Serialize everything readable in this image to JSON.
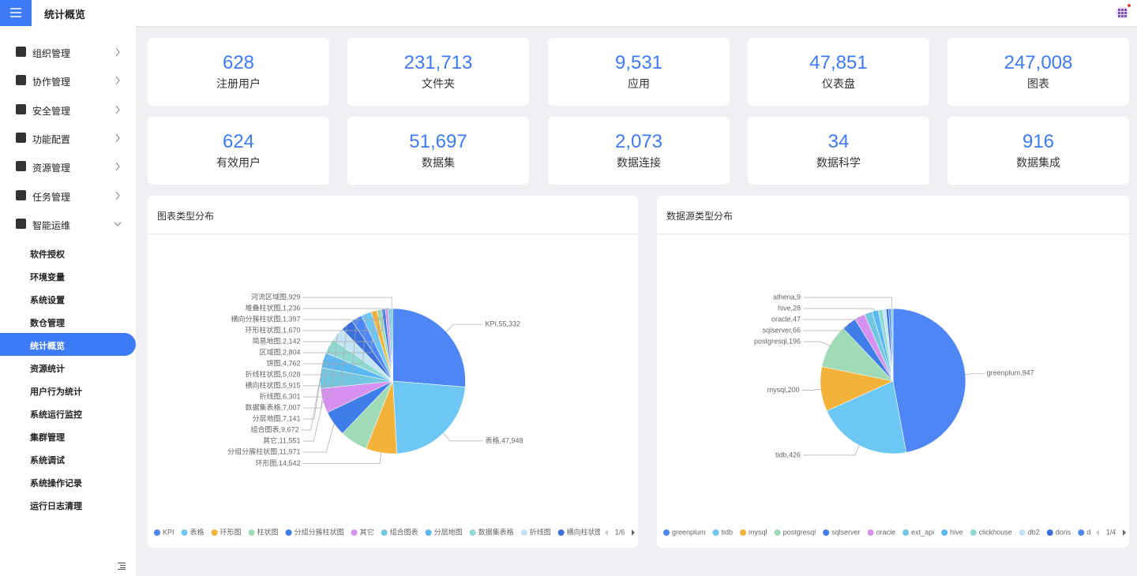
{
  "header": {
    "title": "统计概览"
  },
  "sidebar": {
    "menu": [
      "组织管理",
      "协作管理",
      "安全管理",
      "功能配置",
      "资源管理",
      "任务管理",
      "智能运维"
    ],
    "submenu": [
      "软件授权",
      "环境变量",
      "系统设置",
      "数仓管理",
      "统计概览",
      "资源统计",
      "用户行为统计",
      "系统运行监控",
      "集群管理",
      "系统调试",
      "系统操作记录",
      "运行日志清理"
    ],
    "active_index": 4
  },
  "stats": [
    {
      "value": "628",
      "label": "注册用户"
    },
    {
      "value": "231,713",
      "label": "文件夹"
    },
    {
      "value": "9,531",
      "label": "应用"
    },
    {
      "value": "47,851",
      "label": "仪表盘"
    },
    {
      "value": "247,008",
      "label": "图表"
    },
    {
      "value": "624",
      "label": "有效用户"
    },
    {
      "value": "51,697",
      "label": "数据集"
    },
    {
      "value": "2,073",
      "label": "数据连接"
    },
    {
      "value": "34",
      "label": "数据科学"
    },
    {
      "value": "916",
      "label": "数据集成"
    }
  ],
  "chart_data": [
    {
      "type": "pie",
      "title": "图表类型分布",
      "categories": [
        "KPI",
        "表格",
        "环形图",
        "柱状图",
        "分组分簇柱状图",
        "其它",
        "组合图表",
        "分层地图",
        "数据集表格",
        "折线图",
        "横向柱状图",
        "折线柱状图",
        "饼图",
        "区域图",
        "简易地图",
        "环形柱状图",
        "横向分簇柱状图",
        "堆叠柱状图",
        "河流区域图"
      ],
      "values": [
        55332,
        47948,
        14542,
        13000,
        11971,
        11551,
        9672,
        7141,
        7007,
        6301,
        5915,
        5028,
        4762,
        2804,
        2142,
        1670,
        1397,
        1236,
        929
      ],
      "labels": [
        "KPI,55,332",
        "表格,47,948",
        "环形图,14,542",
        null,
        "分组分簇柱状图,11,971",
        "其它,11,551",
        "组合图表,9,672",
        "分层地图,7,141",
        "数据集表格,7,007",
        "折线图,6,301",
        "横向柱状图,5,915",
        "折线柱状图,5,028",
        "饼图,4,762",
        "区域图,2,804",
        "简易地图,2,142",
        "环形柱状图,1,670",
        "横向分簇柱状图,1,397",
        "堆叠柱状图,1,236",
        "河流区域图,929"
      ],
      "colors": [
        "#4e86f5",
        "#6cc7f5",
        "#f3b33a",
        "#9edbb6",
        "#3f7de8",
        "#d590f0",
        "#72c6e0",
        "#5cb8f2",
        "#8fd9d2",
        "#c2e2f5",
        "#3a6fdc"
      ],
      "legend_page": "1/6"
    },
    {
      "type": "pie",
      "title": "数据源类型分布",
      "categories": [
        "greenplum",
        "tidb",
        "mysql",
        "postgresql",
        "sqlserver",
        "oracle",
        "ext_api",
        "hive",
        "clickhouse",
        "db2",
        "doris",
        "dameng",
        "athena"
      ],
      "values": [
        947,
        426,
        200,
        196,
        66,
        47,
        35,
        28,
        20,
        15,
        12,
        10,
        9
      ],
      "labels": [
        "greenplum,947",
        "tidb,426",
        "mysql,200",
        "postgresql,196",
        "sqlserver,66",
        "oracle,47",
        null,
        "hive,28",
        null,
        null,
        null,
        null,
        "athena,9"
      ],
      "colors": [
        "#4e86f5",
        "#6cc7f5",
        "#f3b33a",
        "#9edbb6",
        "#3f7de8",
        "#d590f0",
        "#72c6e0",
        "#5cb8f2",
        "#8fd9d2",
        "#c2e2f5",
        "#3a6fdc"
      ],
      "legend_page": "1/4"
    }
  ]
}
